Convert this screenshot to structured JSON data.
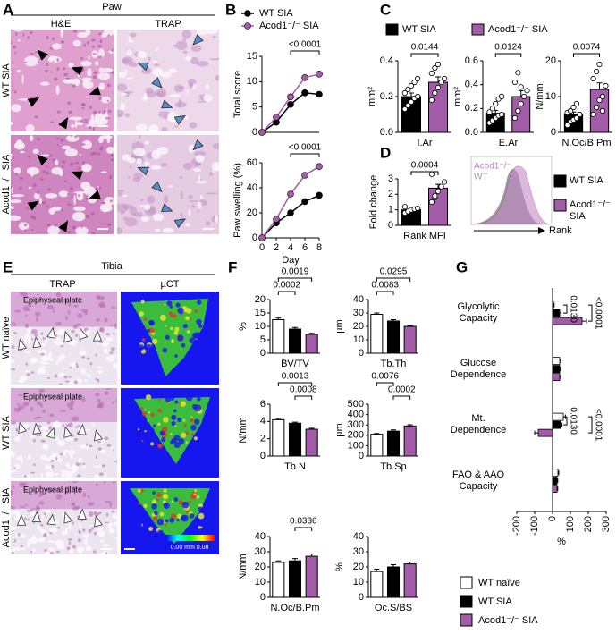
{
  "panel_labels": [
    "A",
    "B",
    "C",
    "D",
    "E",
    "F",
    "G"
  ],
  "panel_a": {
    "header": "Paw",
    "columns": [
      "H&E",
      "TRAP"
    ],
    "rows": [
      "WT SIA",
      "Acod1⁻/⁻ SIA"
    ]
  },
  "panel_d_histogram": {
    "labels": [
      "Acod1⁻/⁻",
      "WT"
    ],
    "axis_label": "Rank"
  },
  "panel_e": {
    "header": "Tibia",
    "columns": [
      "TRAP",
      "µCT"
    ],
    "rows": [
      "WT naïve",
      "WT SIA",
      "Acod1⁻/⁻ SIA"
    ],
    "plate_labels": [
      "Epiphyseal plate",
      "Epiphyseal plate",
      "Epiphyseal plate"
    ],
    "colorbar": "0.00 mm 0.08"
  },
  "chart_data": [
    {
      "type": "line",
      "ylabel": "Total score",
      "x": [
        0,
        2,
        4,
        6,
        8
      ],
      "xlim": [
        0,
        8
      ],
      "ylim": [
        0,
        15
      ],
      "yticks": [
        0,
        5,
        10,
        15
      ],
      "series": [
        {
          "name": "WT SIA",
          "color": "#000000",
          "values": [
            0,
            2,
            5.5,
            7.8,
            7.5
          ]
        },
        {
          "name": "Acod1⁻/⁻ SIA",
          "color": "#a35ca8",
          "values": [
            0,
            3,
            7,
            10.8,
            11.5
          ]
        }
      ],
      "annotations": [
        "<0.0001"
      ]
    },
    {
      "type": "line",
      "ylabel": "Paw swelling (%)",
      "xlabel": "Day",
      "x": [
        0,
        2,
        4,
        6,
        8
      ],
      "xlim": [
        0,
        8
      ],
      "xticks": [
        0,
        2,
        4,
        6,
        8
      ],
      "ylim": [
        0,
        60
      ],
      "yticks": [
        0,
        20,
        40,
        60
      ],
      "series": [
        {
          "color": "#000000",
          "values": [
            0,
            12,
            20,
            29,
            34
          ]
        },
        {
          "color": "#a35ca8",
          "values": [
            0,
            15,
            35,
            50,
            57
          ]
        }
      ],
      "annotations": [
        "<0.0001"
      ]
    },
    {
      "type": "bar",
      "ylabel": "mm²",
      "categories": [
        "I.Ar"
      ],
      "ylim": [
        0,
        0.4
      ],
      "yticks": [
        {
          "value": 0,
          "label": "0.0"
        },
        0.2,
        0.4
      ],
      "series": [
        {
          "name": "WT SIA",
          "color": "#000000",
          "values": [
            0.2
          ],
          "error": [
            0.02
          ],
          "points": [
            0.13,
            0.15,
            0.17,
            0.19,
            0.2,
            0.22,
            0.24,
            0.26,
            0.28,
            0.3
          ]
        },
        {
          "name": "Acod1⁻/⁻ SIA",
          "color": "#a35ca8",
          "values": [
            0.28
          ],
          "error": [
            0.03
          ],
          "points": [
            0.18,
            0.22,
            0.25,
            0.28,
            0.3,
            0.33,
            0.36,
            0.38
          ]
        }
      ],
      "annotations": [
        "0.0144"
      ]
    },
    {
      "type": "bar",
      "ylabel": "mm²",
      "categories": [
        "E.Ar"
      ],
      "ylim": [
        0,
        0.6
      ],
      "yticks": [
        {
          "value": 0,
          "label": "0.0"
        },
        0.2,
        0.4,
        0.6
      ],
      "series": [
        {
          "color": "#000000",
          "values": [
            0.16
          ],
          "error": [
            0.025
          ],
          "points": [
            0.08,
            0.1,
            0.12,
            0.14,
            0.15,
            0.17,
            0.2,
            0.24,
            0.28,
            0.3
          ]
        },
        {
          "color": "#a35ca8",
          "values": [
            0.3
          ],
          "error": [
            0.05
          ],
          "points": [
            0.12,
            0.18,
            0.24,
            0.3,
            0.35,
            0.42,
            0.5,
            0.38
          ]
        }
      ],
      "annotations": [
        "0.0124"
      ]
    },
    {
      "type": "bar",
      "ylabel": "N/mm",
      "categories": [
        "N.Oc/B.Pm"
      ],
      "ylim": [
        0,
        20
      ],
      "yticks": [
        0,
        10,
        20
      ],
      "series": [
        {
          "color": "#000000",
          "values": [
            5
          ],
          "error": [
            0.7
          ],
          "points": [
            2,
            3,
            3.5,
            4,
            5,
            5.5,
            6,
            7,
            8
          ]
        },
        {
          "color": "#a35ca8",
          "values": [
            12
          ],
          "error": [
            1.8
          ],
          "points": [
            5,
            7,
            9,
            10,
            13,
            15,
            17,
            19,
            6
          ]
        }
      ],
      "annotations": [
        "0.0074"
      ]
    },
    {
      "type": "bar",
      "ylabel": "Fold change",
      "categories": [
        "Rank MFI"
      ],
      "ylim": [
        0,
        3
      ],
      "yticks": [
        0,
        1,
        2,
        3
      ],
      "series": [
        {
          "name": "WT SIA",
          "color": "#000000",
          "values": [
            1.0
          ],
          "error": [
            0.06
          ],
          "points": [
            0.8,
            0.9,
            1.0,
            1.05,
            1.1,
            1.2
          ]
        },
        {
          "name": "Acod1⁻/⁻ SIA",
          "color": "#a35ca8",
          "values": [
            2.4
          ],
          "error": [
            0.25
          ],
          "points": [
            1.5,
            1.8,
            2.2,
            2.5,
            2.8,
            3.3,
            1.9
          ]
        }
      ],
      "annotations": [
        "0.0004"
      ]
    },
    {
      "type": "bar",
      "ylabel": "%",
      "categories": [
        "BV/TV"
      ],
      "ylim": [
        0,
        20
      ],
      "yticks": [
        0,
        5,
        10,
        15,
        20
      ],
      "series": [
        {
          "name": "WT naïve",
          "color": "#ffffff",
          "values": [
            12.5
          ],
          "error": [
            0.6
          ]
        },
        {
          "name": "WT SIA",
          "color": "#000000",
          "values": [
            9
          ],
          "error": [
            0.6
          ]
        },
        {
          "name": "Acod1⁻/⁻ SIA",
          "color": "#a35ca8",
          "values": [
            7
          ],
          "error": [
            0.4
          ]
        }
      ],
      "annotations": [
        "0.0002",
        "0.0019"
      ]
    },
    {
      "type": "bar",
      "ylabel": "µm",
      "categories": [
        "Tb.Th"
      ],
      "ylim": [
        0,
        40
      ],
      "yticks": [
        0,
        10,
        20,
        30,
        40
      ],
      "series": [
        {
          "color": "#ffffff",
          "values": [
            29
          ],
          "error": [
            1
          ]
        },
        {
          "color": "#000000",
          "values": [
            24
          ],
          "error": [
            1
          ]
        },
        {
          "color": "#a35ca8",
          "values": [
            20
          ],
          "error": [
            0.7
          ]
        }
      ],
      "annotations": [
        "0.0083",
        "0.0295"
      ]
    },
    {
      "type": "bar",
      "ylabel": "N/mm",
      "categories": [
        "Tb.N"
      ],
      "ylim": [
        0,
        6
      ],
      "yticks": [
        0,
        2,
        4,
        6
      ],
      "series": [
        {
          "color": "#ffffff",
          "values": [
            4.2
          ],
          "error": [
            0.15
          ]
        },
        {
          "color": "#000000",
          "values": [
            3.8
          ],
          "error": [
            0.12
          ]
        },
        {
          "color": "#a35ca8",
          "values": [
            3.1
          ],
          "error": [
            0.12
          ]
        }
      ],
      "annotations": [
        "0.0013",
        "0.0008"
      ]
    },
    {
      "type": "bar",
      "ylabel": "µm",
      "categories": [
        "Tb.Sp"
      ],
      "ylim": [
        0,
        500
      ],
      "yticks": [
        0,
        100,
        200,
        300,
        400,
        500
      ],
      "series": [
        {
          "color": "#ffffff",
          "values": [
            210
          ],
          "error": [
            8
          ]
        },
        {
          "color": "#000000",
          "values": [
            240
          ],
          "error": [
            12
          ]
        },
        {
          "color": "#a35ca8",
          "values": [
            290
          ],
          "error": [
            12
          ]
        }
      ],
      "annotations": [
        "0.0076",
        "0.0002"
      ]
    },
    {
      "type": "bar",
      "ylabel": "N/mm",
      "categories": [
        "N.Oc/B.Pm"
      ],
      "ylim": [
        0,
        40
      ],
      "yticks": [
        0,
        10,
        20,
        30,
        40
      ],
      "series": [
        {
          "color": "#ffffff",
          "values": [
            23
          ],
          "error": [
            1
          ]
        },
        {
          "color": "#000000",
          "values": [
            24
          ],
          "error": [
            1.5
          ]
        },
        {
          "color": "#a35ca8",
          "values": [
            27
          ],
          "error": [
            1.5
          ]
        }
      ],
      "annotations": [
        "0.0336"
      ]
    },
    {
      "type": "bar",
      "ylabel": "%",
      "categories": [
        "Oc.S/BS"
      ],
      "ylim": [
        0,
        40
      ],
      "yticks": [
        0,
        10,
        20,
        30,
        40
      ],
      "series": [
        {
          "color": "#ffffff",
          "values": [
            17
          ],
          "error": [
            1.5
          ]
        },
        {
          "color": "#000000",
          "values": [
            20
          ],
          "error": [
            1.5
          ]
        },
        {
          "color": "#a35ca8",
          "values": [
            22
          ],
          "error": [
            1.2
          ]
        }
      ]
    },
    {
      "type": "hbar",
      "xlabel": "%",
      "categories": [
        "Glycolytic Capacity",
        "Glucose Dependence",
        "Mt. Dependence",
        "FAO & AAO Capacity"
      ],
      "xlim": [
        -200,
        300
      ],
      "xticks": [
        -200,
        -100,
        0,
        100,
        200,
        300
      ],
      "series": [
        {
          "color": "#ffffff",
          "values": [
            5,
            40,
            60,
            30
          ],
          "error": [
            4,
            6,
            12,
            5
          ]
        },
        {
          "color": "#000000",
          "values": [
            40,
            40,
            45,
            25
          ],
          "error": [
            8,
            5,
            8,
            4
          ]
        },
        {
          "color": "#a35ca8",
          "values": [
            165,
            40,
            -80,
            25
          ],
          "error": [
            25,
            6,
            20,
            4
          ]
        }
      ],
      "annotations": [
        "0.0130",
        "<0.0001",
        "0.0130",
        "<0.0001"
      ]
    }
  ]
}
